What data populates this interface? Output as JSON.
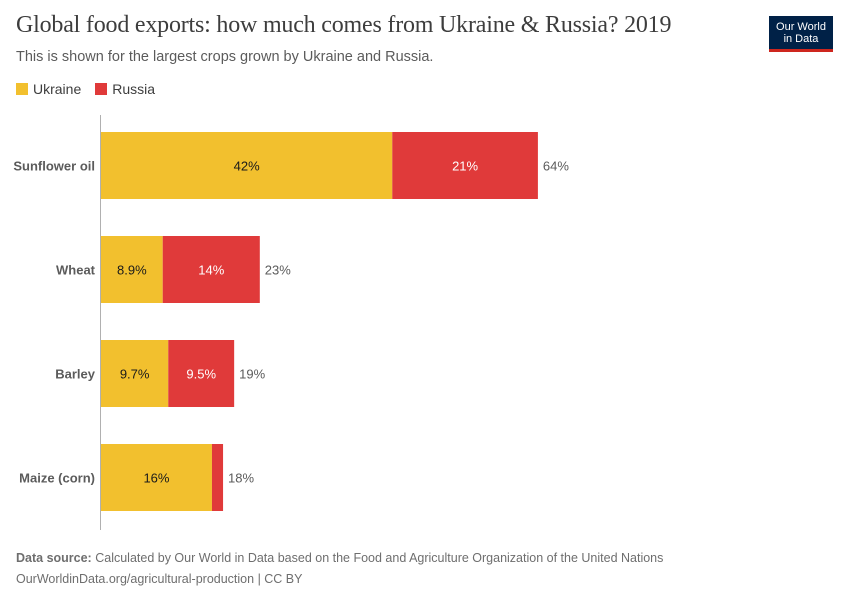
{
  "header": {
    "title": "Global food exports: how much comes from Ukraine & Russia? 2019",
    "subtitle": "This is shown for the largest crops grown by Ukraine and Russia.",
    "logo_line1": "Our World",
    "logo_line2": "in Data"
  },
  "legend": [
    {
      "name": "Ukraine",
      "color": "#f2c02e"
    },
    {
      "name": "Russia",
      "color": "#e03a3a"
    }
  ],
  "chart_data": {
    "type": "bar",
    "orientation": "horizontal",
    "stacked": true,
    "title": "Global food exports: how much comes from Ukraine & Russia? 2019",
    "subtitle": "This is shown for the largest crops grown by Ukraine and Russia.",
    "categories": [
      "Sunflower oil",
      "Wheat",
      "Barley",
      "Maize (corn)"
    ],
    "series": [
      {
        "name": "Ukraine",
        "color": "#f2c02e",
        "values": [
          42,
          8.9,
          9.7,
          16
        ],
        "labels": [
          "42%",
          "8.9%",
          "9.7%",
          "16%"
        ]
      },
      {
        "name": "Russia",
        "color": "#e03a3a",
        "values": [
          21,
          14,
          9.5,
          1.6
        ],
        "labels": [
          "21%",
          "14%",
          "9.5%",
          ""
        ]
      }
    ],
    "totals": [
      "64%",
      "23%",
      "19%",
      "18%"
    ],
    "xlim": [
      0,
      64
    ],
    "unit": "%",
    "legend_position": "top-left",
    "grid": false
  },
  "footer": {
    "source_label": "Data source:",
    "source_text": "Calculated by Our World in Data based on the Food and Agriculture Organization of the United Nations",
    "link_text": "OurWorldinData.org/agricultural-production",
    "license": "| CC BY"
  }
}
